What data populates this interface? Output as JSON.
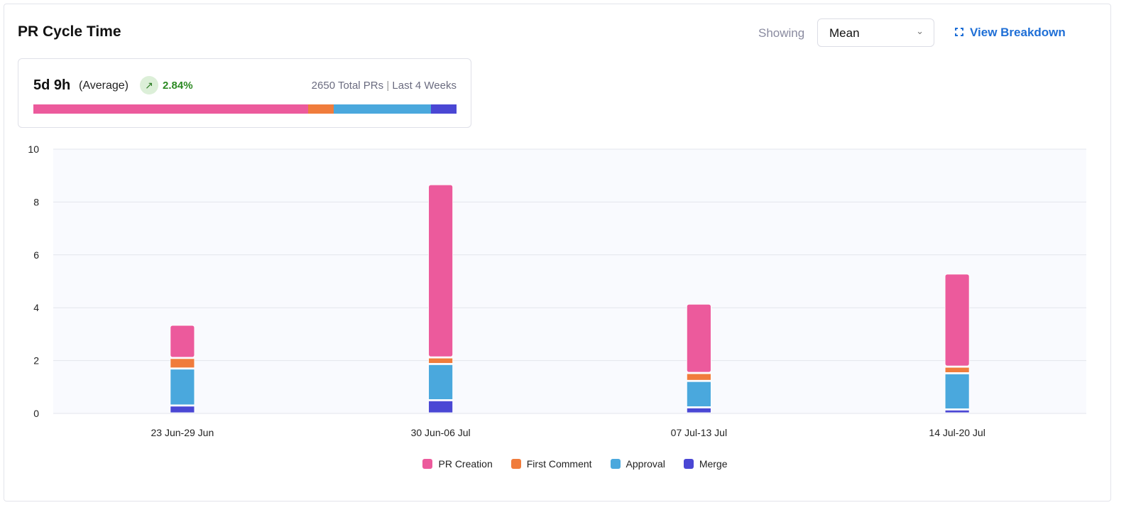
{
  "header": {
    "title": "PR Cycle Time",
    "showing_label": "Showing",
    "select_value": "Mean",
    "view_breakdown": "View Breakdown",
    "expand_icon": "expand-icon"
  },
  "summary": {
    "value": "5d 9h",
    "value_label": "(Average)",
    "trend_icon": "arrow-up-right-icon",
    "change": "2.84%",
    "total": "2650 Total PRs",
    "separator": "|",
    "period": "Last 4 Weeks",
    "breakdown_fractions": {
      "PR Creation": 0.65,
      "First Comment": 0.06,
      "Approval": 0.23,
      "Merge": 0.06
    }
  },
  "colors": {
    "PR Creation": "#ec5a9c",
    "First Comment": "#f07c3c",
    "Approval": "#4aa8dd",
    "Merge": "#4a47d4",
    "accent": "#1f6fd6",
    "positive": "#2c8a23"
  },
  "chart_data": {
    "type": "bar",
    "stacked": true,
    "categories": [
      "23 Jun-29 Jun",
      "30 Jun-06 Jul",
      "07 Jul-13 Jul",
      "14 Jul-20 Jul"
    ],
    "series": [
      {
        "name": "Merge",
        "values": [
          0.3,
          0.5,
          0.23,
          0.15
        ]
      },
      {
        "name": "Approval",
        "values": [
          1.4,
          1.37,
          1.0,
          1.37
        ]
      },
      {
        "name": "First Comment",
        "values": [
          0.4,
          0.25,
          0.3,
          0.25
        ]
      },
      {
        "name": "PR Creation",
        "values": [
          1.23,
          6.53,
          2.6,
          3.5
        ]
      }
    ],
    "ylim": [
      0,
      10
    ],
    "yticks": [
      "0",
      "2",
      "4",
      "6",
      "8",
      "10"
    ],
    "grid": true,
    "legend": "bottom",
    "legend_order": [
      "PR Creation",
      "First Comment",
      "Approval",
      "Merge"
    ]
  }
}
